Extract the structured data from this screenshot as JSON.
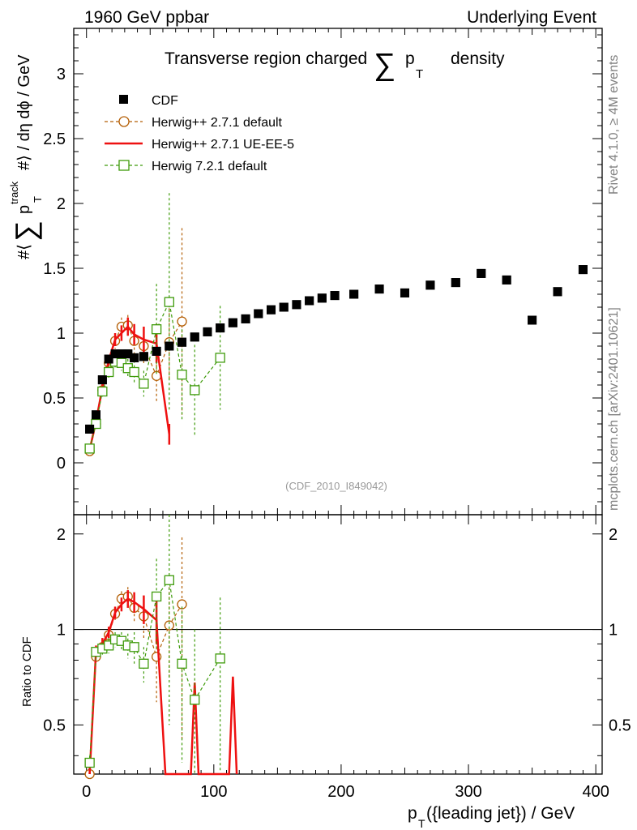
{
  "header": {
    "left": "1960 GeV ppbar",
    "right": "Underlying Event"
  },
  "side_labels": {
    "rivet": "Rivet 4.1.0, ≥ 4M events",
    "mcplots": "mcplots.cern.ch [arXiv:2401.10621]"
  },
  "chart_data": {
    "type": "scatter",
    "title_parts": {
      "prefix": "Transverse region charged",
      "sum": "∑",
      "p": "p",
      "sub": "T",
      "suffix": "density"
    },
    "ylabel_parts": {
      "hash": "#⟨",
      "sum": "∑",
      "p": "p",
      "sup": "track",
      "sub": "T",
      "rest": "#⟩ / dη dϕ / GeV"
    },
    "xlabel_parts": {
      "p": "p",
      "sub": "T",
      "rest": "({leading jet}) / GeV"
    },
    "ratio_ylabel": "Ratio to CDF",
    "watermark": "(CDF_2010_I849042)",
    "xlim": [
      -10,
      405
    ],
    "ylim": [
      -0.4,
      3.35
    ],
    "ratio_ylim": [
      0.35,
      2.3
    ],
    "xticks": [
      "0",
      "100",
      "200",
      "300",
      "400"
    ],
    "yticks": [
      "0",
      "0.5",
      "1",
      "1.5",
      "2",
      "2.5",
      "3"
    ],
    "ratio_yticks": [
      "0.5",
      "1",
      "2"
    ],
    "legend": [
      "CDF",
      "Herwig++ 2.7.1 default",
      "Herwig++ 2.7.1 UE-EE-5",
      "Herwig 7.2.1 default"
    ],
    "series": [
      {
        "name": "CDF",
        "color": "#000000",
        "x": [
          2.5,
          7.5,
          12.5,
          17.5,
          22.5,
          27.5,
          32.5,
          37.5,
          45,
          55,
          65,
          75,
          85,
          95,
          105,
          115,
          125,
          135,
          145,
          155,
          165,
          175,
          185,
          195,
          210,
          230,
          250,
          270,
          290,
          310,
          330,
          350,
          370,
          390
        ],
        "y": [
          0.26,
          0.37,
          0.64,
          0.8,
          0.84,
          0.84,
          0.84,
          0.81,
          0.82,
          0.86,
          0.9,
          0.93,
          0.97,
          1.01,
          1.04,
          1.08,
          1.11,
          1.15,
          1.18,
          1.2,
          1.22,
          1.25,
          1.27,
          1.29,
          1.3,
          1.34,
          1.31,
          1.37,
          1.39,
          1.46,
          1.41,
          1.1,
          1.32,
          1.49
        ]
      },
      {
        "name": "Herwig++ 2.7.1 default",
        "color": "#b45f06",
        "x": [
          2.5,
          7.5,
          12.5,
          17.5,
          22.5,
          27.5,
          32.5,
          37.5,
          45,
          55,
          65,
          75
        ],
        "y": [
          0.09,
          0.3,
          0.56,
          0.77,
          0.94,
          1.05,
          1.06,
          0.94,
          0.9,
          0.67,
          0.93,
          1.09
        ],
        "yerr": [
          0.02,
          0.03,
          0.04,
          0.05,
          0.06,
          0.07,
          0.08,
          0.1,
          0.15,
          0.2,
          0.3,
          0.72
        ]
      },
      {
        "name": "Herwig++ 2.7.1 UE-EE-5",
        "color": "#ee1111",
        "x": [
          2.5,
          7.5,
          12.5,
          17.5,
          22.5,
          27.5,
          32.5,
          37.5,
          45,
          55,
          65
        ],
        "y": [
          0.1,
          0.32,
          0.58,
          0.79,
          0.95,
          1.0,
          1.05,
          0.99,
          0.95,
          0.92,
          0.22
        ],
        "yerr": [
          0.02,
          0.03,
          0.04,
          0.04,
          0.05,
          0.06,
          0.07,
          0.08,
          0.1,
          0.15,
          0.08
        ]
      },
      {
        "name": "Herwig 7.2.1 default",
        "color": "#3f9b0b",
        "x": [
          2.5,
          7.5,
          12.5,
          17.5,
          22.5,
          27.5,
          32.5,
          37.5,
          45,
          55,
          65,
          75,
          85,
          105
        ],
        "y": [
          0.11,
          0.3,
          0.55,
          0.7,
          0.78,
          0.77,
          0.73,
          0.7,
          0.61,
          1.03,
          1.24,
          0.68,
          0.56,
          0.81
        ],
        "yerr": [
          0.02,
          0.03,
          0.04,
          0.05,
          0.05,
          0.06,
          0.07,
          0.09,
          0.1,
          0.35,
          0.84,
          0.35,
          0.35,
          0.4
        ]
      }
    ],
    "ratio_series": [
      {
        "name": "Herwig++ 2.7.1 default",
        "x": [
          2.5,
          7.5,
          12.5,
          17.5,
          22.5,
          27.5,
          32.5,
          37.5,
          45,
          55,
          65,
          75
        ],
        "y": [
          0.35,
          0.82,
          0.88,
          0.96,
          1.12,
          1.25,
          1.27,
          1.17,
          1.1,
          0.82,
          1.03,
          1.2
        ],
        "yerr": [
          0.02,
          0.03,
          0.04,
          0.05,
          0.05,
          0.07,
          0.09,
          0.12,
          0.17,
          0.23,
          0.33,
          0.75
        ]
      },
      {
        "name": "Herwig++ 2.7.1 UE-EE-5",
        "x": [
          2.5,
          7.5,
          12.5,
          17.5,
          22.5,
          27.5,
          32.5,
          37.5,
          45,
          55,
          62,
          65,
          82,
          85,
          88,
          112,
          115,
          118
        ],
        "y": [
          0.35,
          0.86,
          0.9,
          0.98,
          1.13,
          1.2,
          1.25,
          1.22,
          1.16,
          1.07,
          0.35,
          0.35,
          0.35,
          0.68,
          0.35,
          0.35,
          0.71,
          0.35
        ],
        "yerr": [
          0.02,
          0.03,
          0.04,
          0.04,
          0.05,
          0.06,
          0.08,
          0.09,
          0.12,
          0.17,
          0,
          0,
          0,
          0,
          0,
          0,
          0,
          0
        ]
      },
      {
        "name": "Herwig 7.2.1 default",
        "x": [
          2.5,
          7.5,
          12.5,
          17.5,
          22.5,
          27.5,
          32.5,
          37.5,
          45,
          55,
          65,
          75,
          85,
          105
        ],
        "y": [
          0.38,
          0.85,
          0.87,
          0.89,
          0.93,
          0.92,
          0.89,
          0.88,
          0.78,
          1.27,
          1.43,
          0.78,
          0.6,
          0.81
        ],
        "yerr": [
          0.02,
          0.03,
          0.04,
          0.05,
          0.05,
          0.06,
          0.08,
          0.1,
          0.1,
          0.4,
          0.93,
          0.4,
          0.4,
          0.45
        ]
      }
    ]
  }
}
